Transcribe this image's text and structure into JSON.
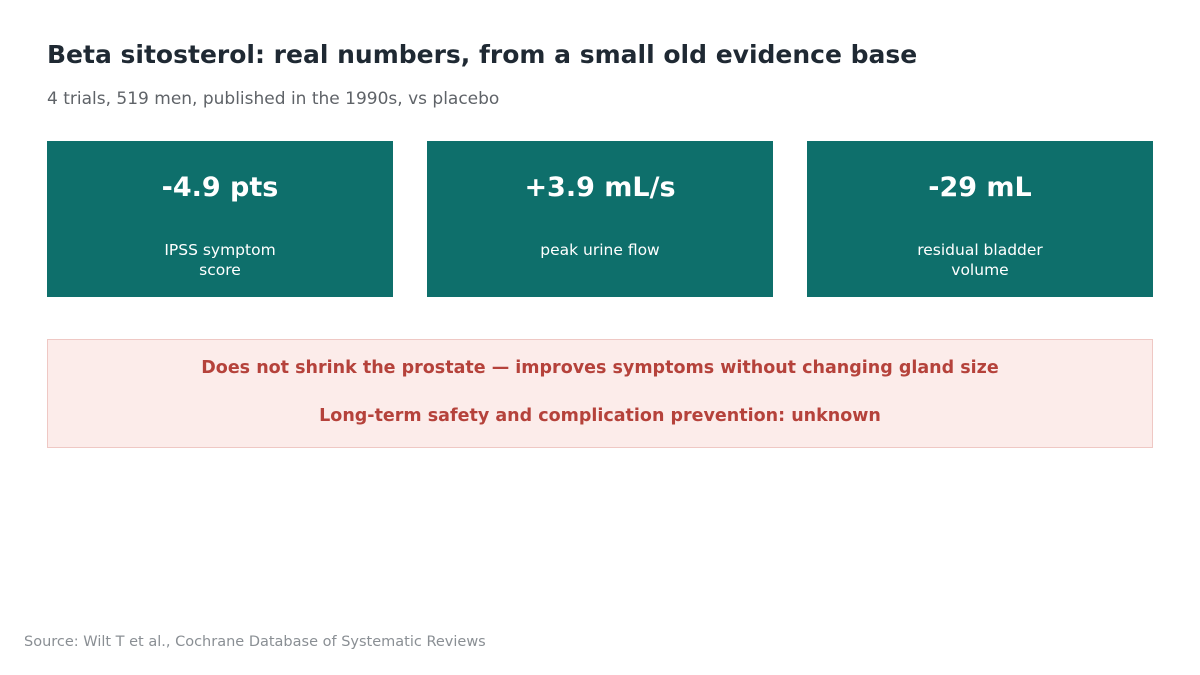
{
  "header": {
    "title": "Beta sitosterol: real numbers, from a small old evidence base",
    "subtitle": "4 trials, 519 men, published in the 1990s, vs placebo"
  },
  "stats": [
    {
      "value": "-4.9 pts",
      "label": "IPSS symptom score"
    },
    {
      "value": "+3.9 mL/s",
      "label": "peak urine flow"
    },
    {
      "value": "-29 mL",
      "label": "residual bladder volume"
    }
  ],
  "callout": {
    "line1": "Does not shrink the prostate — improves symptoms without changing gland size",
    "line2": "Long-term safety and complication prevention: unknown"
  },
  "footer": {
    "source": "Source: Wilt T et al., Cochrane Database of Systematic Reviews"
  },
  "colors": {
    "card_background": "#0e6f6b",
    "callout_background": "#fcecea",
    "callout_text": "#b5423b"
  }
}
